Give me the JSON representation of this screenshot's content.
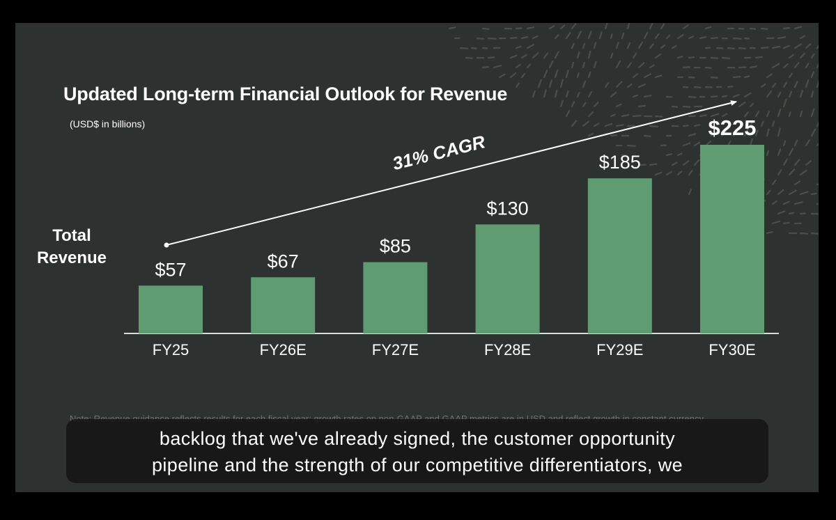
{
  "slide": {
    "footnote": "Note: Revenue guidance reflects results for each fiscal year; growth rates on non-GAAP and GAAP metrics are in USD and reflect growth in constant currency.",
    "row_label_line1": "Total",
    "row_label_line2": "Revenue",
    "cagr_label": "31% CAGR"
  },
  "caption": {
    "line1": "backlog that we've already signed, the customer opportunity",
    "line2": "pipeline and the strength of our competitive differentiators, we"
  },
  "colors": {
    "background": "#2d312f",
    "bar": "#5f9c71",
    "text": "#ffffff",
    "pattern": "#4a5049"
  },
  "chart_data": {
    "type": "bar",
    "title": "Updated Long-term Financial Outlook for Revenue",
    "subtitle": "(USD$ in billions)",
    "xlabel": "",
    "ylabel": "Total Revenue",
    "categories": [
      "FY25",
      "FY26E",
      "FY27E",
      "FY28E",
      "FY29E",
      "FY30E"
    ],
    "values": [
      57,
      67,
      85,
      130,
      185,
      225
    ],
    "data_labels": [
      "$57",
      "$67",
      "$85",
      "$130",
      "$185",
      "$225"
    ],
    "emphasized_label_index": 5,
    "ylim": [
      0,
      225
    ],
    "grid": false,
    "legend": "none",
    "annotation": "31% CAGR"
  }
}
